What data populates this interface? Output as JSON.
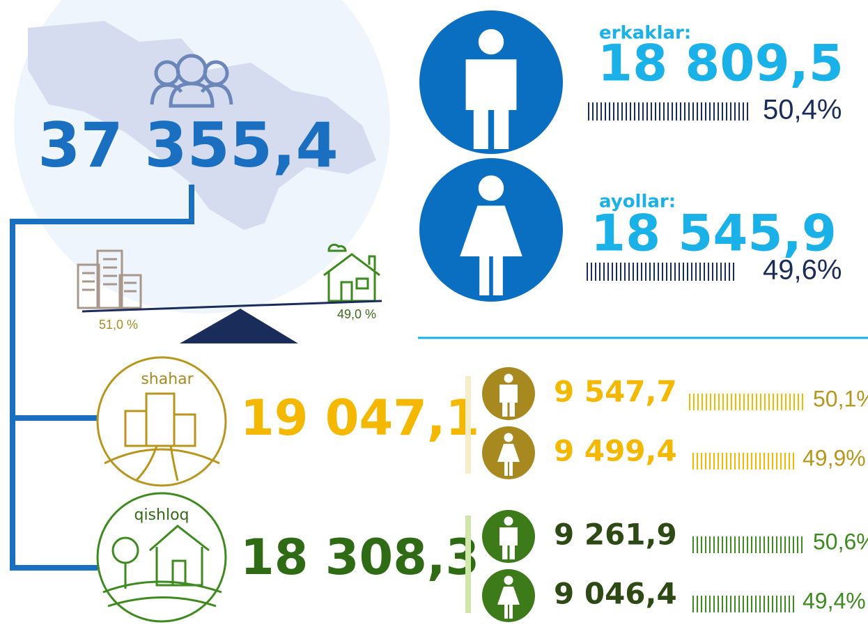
{
  "total": {
    "value": "37 355,4",
    "urban_share": "51,0 %",
    "rural_share": "49,0 %"
  },
  "men": {
    "label": "erkaklar:",
    "value": "18 809,5",
    "percent": "50,4%"
  },
  "women": {
    "label": "ayollar:",
    "value": "18 545,9",
    "percent": "49,6%"
  },
  "urban": {
    "label": "shahar",
    "value": "19 047,1",
    "men": {
      "value": "9 547,7",
      "percent": "50,1%"
    },
    "women": {
      "value": "9 499,4",
      "percent": "49,9%"
    }
  },
  "rural": {
    "label": "qishloq",
    "value": "18 308,3",
    "men": {
      "value": "9 261,9",
      "percent": "50,6%"
    },
    "women": {
      "value": "9 046,4",
      "percent": "49,4%"
    }
  }
}
